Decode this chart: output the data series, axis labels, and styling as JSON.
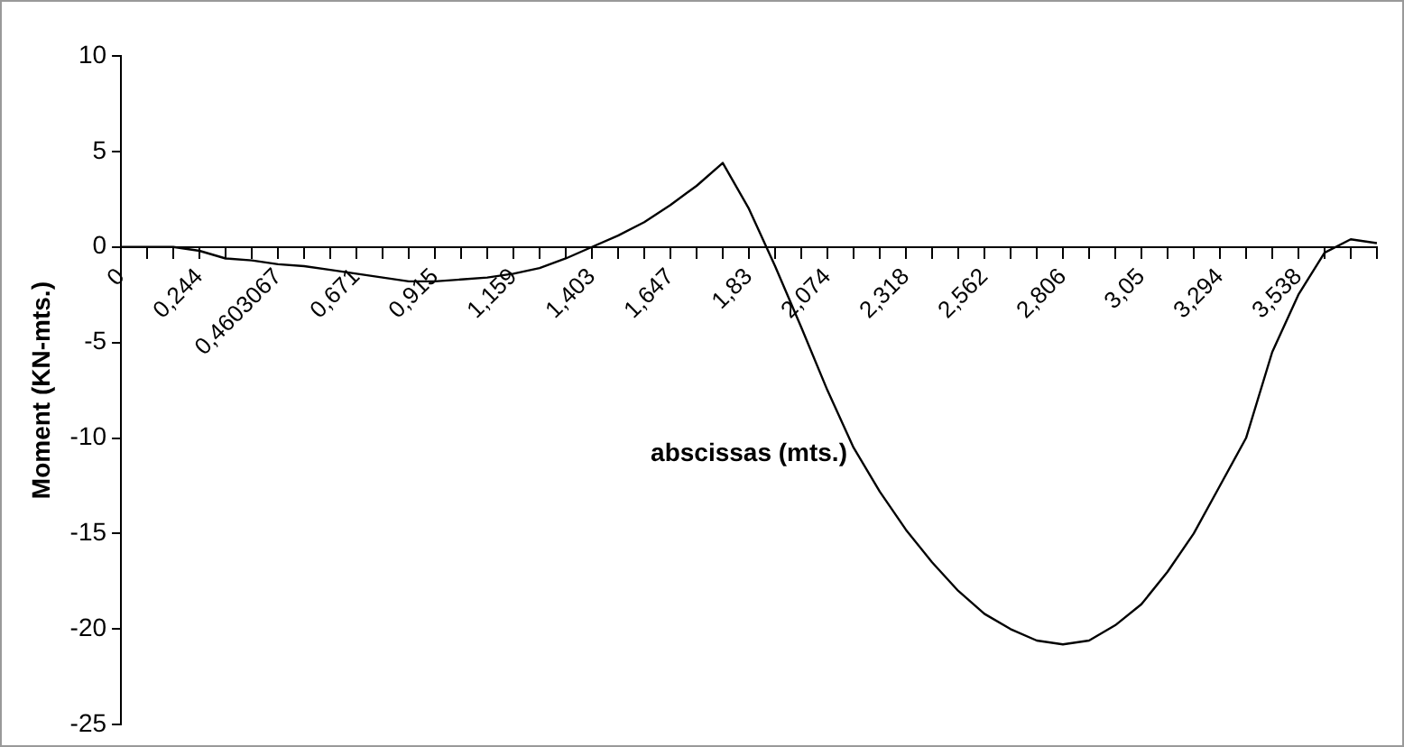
{
  "chart_data": {
    "type": "line",
    "xlabel": "abscissas (mts.)",
    "ylabel": "Moment (KN-mts.)",
    "categories": [
      "0",
      null,
      null,
      "0,244",
      null,
      null,
      "0,4603067",
      null,
      null,
      "0,671",
      null,
      null,
      "0,915",
      null,
      null,
      "1,159",
      null,
      null,
      "1,403",
      null,
      null,
      "1,647",
      null,
      null,
      "1,83",
      null,
      null,
      "2,074",
      null,
      null,
      "2,318",
      null,
      null,
      "2,562",
      null,
      null,
      "2,806",
      null,
      null,
      "3,05",
      null,
      null,
      "3,294",
      null,
      null,
      "3,538",
      null,
      null,
      null
    ],
    "series": [
      {
        "color": "#000000",
        "values": [
          0,
          0,
          0,
          -0.2,
          -0.6,
          -0.7,
          -0.9,
          -1.0,
          -1.2,
          -1.4,
          -1.6,
          -1.8,
          -1.8,
          -1.7,
          -1.6,
          -1.4,
          -1.1,
          -0.6,
          0,
          0.6,
          1.3,
          2.2,
          3.2,
          4.4,
          2.0,
          -1.0,
          -4.2,
          -7.5,
          -10.5,
          -12.8,
          -14.8,
          -16.5,
          -18,
          -19.2,
          -20,
          -20.6,
          -20.8,
          -20.6,
          -19.8,
          -18.7,
          -17,
          -15,
          -12.5,
          -10,
          -5.5,
          -2.5,
          -0.3,
          0.4,
          0.2
        ]
      }
    ],
    "ylim": [
      -25,
      10
    ],
    "yticks": [
      -25,
      -20,
      -15,
      -10,
      -5,
      0,
      5,
      10
    ],
    "grid": false,
    "legend": false,
    "marker": "none",
    "line_style": "solid"
  }
}
